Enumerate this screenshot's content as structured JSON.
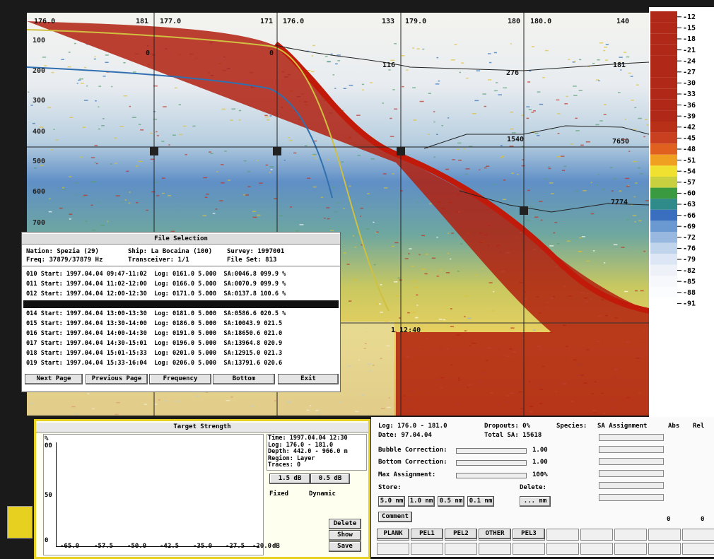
{
  "echogram": {
    "top_labels": [
      "176.0",
      "181",
      "177.0",
      "171",
      "176.0",
      "133",
      "179.0",
      "180",
      "180.0",
      "140"
    ],
    "depth_labels": [
      "100",
      "200",
      "300",
      "400",
      "500",
      "600",
      "700"
    ],
    "region_labels": [
      "0",
      "0",
      "116",
      "276",
      "181",
      "1540",
      "7650",
      "7774"
    ],
    "time_label": "1 12:40"
  },
  "color_scale": [
    "-12",
    "-15",
    "-18",
    "-21",
    "-24",
    "-27",
    "-30",
    "-33",
    "-36",
    "-39",
    "-42",
    "-45",
    "-48",
    "-51",
    "-54",
    "-57",
    "-60",
    "-63",
    "-66",
    "-69",
    "-72",
    "-76",
    "-79",
    "-82",
    "-85",
    "-88",
    "-91"
  ],
  "file_selection": {
    "title": "File Selection",
    "header": [
      "Nation: Spezia (29)",
      "Ship: La Bocaina (100)",
      "Survey: 1997001",
      "Freq: 37879/37879 Hz",
      "Transceiver: 1/1",
      "File Set: 813"
    ],
    "rows_before": [
      "010 Start: 1997.04.04 09:47-11:02  Log: 0161.0 5.000  SA:0046.8 099.9 %",
      "011 Start: 1997.04.04 11:02-12:00  Log: 0166.0 5.000  SA:0070.9 099.9 %",
      "012 Start: 1997.04.04 12:00-12:30  Log: 0171.0 5.000  SA:0137.8 100.6 %"
    ],
    "rows_after": [
      "014 Start: 1997.04.04 13:00-13:30  Log: 0181.0 5.000  SA:0586.6 020.5 %",
      "015 Start: 1997.04.04 13:30-14:00  Log: 0186.0 5.000  SA:10043.9 021.5",
      "016 Start: 1997.04.04 14:00-14:30  Log: 0191.0 5.000  SA:18650.6 021.0",
      "017 Start: 1997.04.04 14:30-15:01  Log: 0196.0 5.000  SA:13964.8 020.9",
      "018 Start: 1997.04.04 15:01-15:33  Log: 0201.0 5.000  SA:12915.0 021.3",
      "019 Start: 1997.04.04 15:33-16:04  Log: 0206.0 5.000  SA:13791.6 020.6"
    ],
    "buttons": [
      "Next Page",
      "Previous Page",
      "Frequency",
      "Bottom",
      "Exit"
    ]
  },
  "target_strength": {
    "title": "Target Strength",
    "y_labels": [
      "%",
      "00",
      "50",
      "0"
    ],
    "x_labels": [
      "-65.0",
      "-57.5",
      "-50.0",
      "-42.5",
      "-35.0",
      "-27.5",
      "-20.0",
      "dB"
    ],
    "info": [
      "Time: 1997.04.04 12:30",
      "Log: 176.0 - 181.0",
      "Depth: 442.0 - 966.0 m",
      "Region: Layer",
      "Traces: 0"
    ],
    "step_buttons": [
      "1.5 dB",
      "0.5 dB"
    ],
    "mode_buttons": [
      "Fixed",
      "Dynamic"
    ],
    "action_buttons": [
      "Delete",
      "Show",
      "Save"
    ]
  },
  "sa_panel": {
    "log": "Log: 176.0 - 181.0",
    "dropouts": "Dropouts: 0%",
    "species": "Species:",
    "sa_assignment": "SA Assignment",
    "abs": "Abs",
    "rel": "Rel",
    "date": "Date: 97.04.04",
    "total": "Total SA: 15618",
    "bubble": "Bubble Correction:",
    "bubble_value": "1.00",
    "bottom": "Bottom Correction:",
    "bottom_value": "1.00",
    "max": "Max Assignment:",
    "max_value": "100%",
    "store": "Store:",
    "delete": "Delete:",
    "store_buttons": [
      "5.0 nm",
      "1.0 nm",
      "0.5 nm",
      "0.1 nm"
    ],
    "delete_button": "... nm",
    "comment": "Comment",
    "abs_value": "0",
    "rel_value": "0",
    "species_buttons": [
      "PLANK",
      "PEL1",
      "PEL2",
      "OTHER",
      "PEL3"
    ]
  }
}
